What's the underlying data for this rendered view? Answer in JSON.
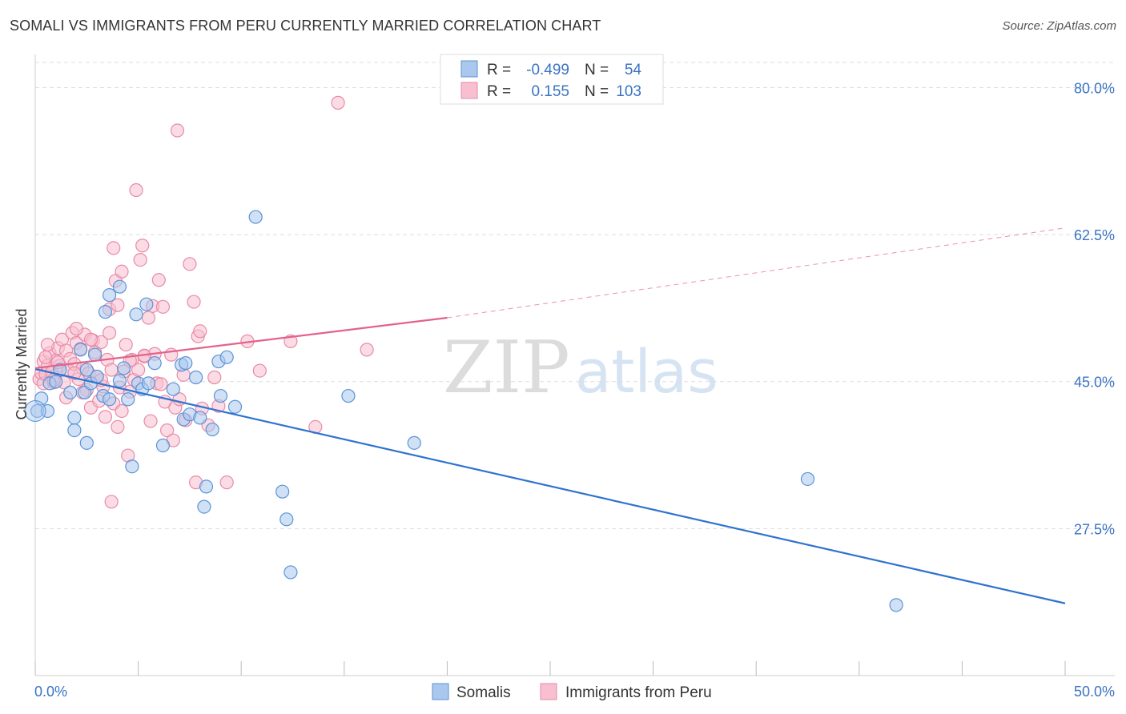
{
  "title": "SOMALI VS IMMIGRANTS FROM PERU CURRENTLY MARRIED CORRELATION CHART",
  "source": "Source: ZipAtlas.com",
  "watermark": {
    "zip": "ZIP",
    "atlas": "atlas"
  },
  "legend": {
    "rows": [
      {
        "r_label": "R =",
        "r_value": "-0.499",
        "n_label": "N =",
        "n_value": "54"
      },
      {
        "r_label": "R =",
        "r_value": "0.155",
        "n_label": "N =",
        "n_value": "103"
      }
    ]
  },
  "bottom_legend": [
    "Somalis",
    "Immigrants from Peru"
  ],
  "colors": {
    "blue_fill": "#aac8ee",
    "blue_stroke": "#5b93d6",
    "blue_line": "#2f73cf",
    "pink_fill": "#f7bfd0",
    "pink_stroke": "#e88aa8",
    "pink_line": "#e2628b",
    "grid": "#dddddd",
    "axis_text": "#3b73c4"
  },
  "chart_data": {
    "type": "scatter",
    "title": "SOMALI VS IMMIGRANTS FROM PERU CURRENTLY MARRIED CORRELATION CHART",
    "xlabel": "",
    "ylabel": "Currently Married",
    "xlim": [
      0,
      50
    ],
    "ylim": [
      10,
      83
    ],
    "x_tick_labels": [
      "0.0%",
      "50.0%"
    ],
    "y_ticks": [
      27.5,
      45.0,
      62.5,
      80.0
    ],
    "y_tick_labels": [
      "27.5%",
      "45.0%",
      "62.5%",
      "80.0%"
    ],
    "series": [
      {
        "name": "Somalis",
        "R": -0.499,
        "N": 54,
        "trend": {
          "x0": 0,
          "y0": 46.5,
          "x1": 50,
          "y1": 18.6
        },
        "points": [
          [
            0.1,
            41.5
          ],
          [
            0.6,
            41.5
          ],
          [
            0.7,
            44.8
          ],
          [
            1.2,
            46.4
          ],
          [
            1.7,
            43.7
          ],
          [
            1.9,
            40.7
          ],
          [
            1.9,
            39.2
          ],
          [
            2.2,
            48.8
          ],
          [
            2.4,
            43.7
          ],
          [
            2.5,
            46.4
          ],
          [
            2.5,
            37.7
          ],
          [
            2.7,
            44.8
          ],
          [
            3.0,
            45.6
          ],
          [
            3.3,
            43.3
          ],
          [
            3.4,
            53.3
          ],
          [
            3.6,
            42.9
          ],
          [
            3.6,
            55.3
          ],
          [
            4.1,
            56.3
          ],
          [
            4.1,
            45.1
          ],
          [
            4.5,
            42.9
          ],
          [
            4.7,
            34.9
          ],
          [
            4.9,
            53.0
          ],
          [
            5.0,
            44.8
          ],
          [
            5.2,
            44.1
          ],
          [
            5.4,
            54.2
          ],
          [
            5.5,
            44.8
          ],
          [
            6.2,
            37.4
          ],
          [
            7.1,
            47.0
          ],
          [
            7.2,
            40.5
          ],
          [
            7.3,
            47.2
          ],
          [
            7.5,
            41.1
          ],
          [
            7.8,
            45.5
          ],
          [
            8.0,
            40.7
          ],
          [
            8.2,
            30.1
          ],
          [
            8.3,
            32.5
          ],
          [
            8.6,
            39.3
          ],
          [
            8.9,
            47.4
          ],
          [
            9.0,
            43.3
          ],
          [
            9.3,
            47.9
          ],
          [
            9.7,
            42.0
          ],
          [
            10.7,
            64.6
          ],
          [
            12.0,
            31.9
          ],
          [
            12.2,
            28.6
          ],
          [
            12.4,
            22.3
          ],
          [
            15.2,
            43.3
          ],
          [
            18.4,
            37.7
          ],
          [
            37.5,
            33.4
          ],
          [
            41.8,
            18.4
          ],
          [
            0.3,
            43.0
          ],
          [
            1.0,
            45.0
          ],
          [
            2.9,
            48.2
          ],
          [
            4.3,
            46.6
          ],
          [
            5.8,
            47.2
          ],
          [
            6.7,
            44.1
          ]
        ]
      },
      {
        "name": "Immigrants from Peru",
        "R": 0.155,
        "N": 103,
        "trend": {
          "x0": 0,
          "y0": 46.6,
          "x1": 20,
          "y1": 52.6,
          "dashed_to_x": 50,
          "dashed_to_y": 63.3
        },
        "points": [
          [
            0.2,
            45.3
          ],
          [
            0.3,
            46.0
          ],
          [
            0.4,
            47.4
          ],
          [
            0.4,
            44.8
          ],
          [
            0.5,
            45.9
          ],
          [
            0.6,
            46.9
          ],
          [
            0.7,
            48.4
          ],
          [
            0.8,
            46.1
          ],
          [
            0.9,
            44.9
          ],
          [
            1.0,
            47.5
          ],
          [
            1.1,
            49.0
          ],
          [
            1.2,
            46.9
          ],
          [
            1.3,
            50.0
          ],
          [
            1.4,
            44.9
          ],
          [
            1.5,
            48.7
          ],
          [
            1.6,
            46.3
          ],
          [
            1.7,
            47.7
          ],
          [
            1.8,
            50.8
          ],
          [
            1.9,
            47.1
          ],
          [
            2.0,
            49.6
          ],
          [
            2.1,
            45.3
          ],
          [
            2.2,
            48.9
          ],
          [
            2.3,
            46.6
          ],
          [
            2.4,
            50.6
          ],
          [
            2.5,
            44.0
          ],
          [
            2.6,
            46.0
          ],
          [
            2.7,
            41.9
          ],
          [
            2.8,
            49.9
          ],
          [
            2.9,
            48.5
          ],
          [
            3.0,
            45.6
          ],
          [
            3.1,
            42.7
          ],
          [
            3.2,
            49.7
          ],
          [
            3.3,
            44.4
          ],
          [
            3.4,
            40.8
          ],
          [
            3.5,
            47.6
          ],
          [
            3.6,
            53.6
          ],
          [
            3.6,
            50.8
          ],
          [
            3.7,
            46.4
          ],
          [
            3.8,
            42.4
          ],
          [
            3.9,
            57.0
          ],
          [
            4.0,
            54.1
          ],
          [
            4.1,
            44.3
          ],
          [
            4.2,
            41.5
          ],
          [
            4.3,
            46.2
          ],
          [
            4.4,
            49.4
          ],
          [
            4.5,
            36.2
          ],
          [
            4.6,
            43.8
          ],
          [
            4.7,
            47.6
          ],
          [
            4.8,
            45.2
          ],
          [
            4.9,
            67.8
          ],
          [
            5.0,
            46.4
          ],
          [
            5.1,
            59.5
          ],
          [
            5.2,
            61.2
          ],
          [
            5.3,
            48.0
          ],
          [
            5.5,
            52.6
          ],
          [
            5.6,
            40.3
          ],
          [
            5.7,
            54.0
          ],
          [
            5.8,
            48.3
          ],
          [
            5.9,
            44.8
          ],
          [
            6.0,
            57.1
          ],
          [
            6.2,
            53.9
          ],
          [
            6.3,
            42.6
          ],
          [
            6.4,
            39.2
          ],
          [
            6.6,
            48.2
          ],
          [
            6.8,
            41.9
          ],
          [
            7.0,
            42.9
          ],
          [
            7.2,
            45.8
          ],
          [
            7.3,
            40.4
          ],
          [
            7.5,
            59.0
          ],
          [
            7.7,
            54.5
          ],
          [
            7.9,
            50.4
          ],
          [
            8.1,
            41.8
          ],
          [
            8.4,
            39.8
          ],
          [
            8.7,
            45.5
          ],
          [
            8.9,
            42.1
          ],
          [
            9.3,
            33.0
          ],
          [
            10.3,
            49.8
          ],
          [
            10.9,
            46.3
          ],
          [
            12.4,
            49.8
          ],
          [
            13.6,
            39.6
          ],
          [
            14.7,
            78.2
          ],
          [
            16.1,
            48.8
          ],
          [
            3.8,
            60.9
          ],
          [
            3.7,
            30.7
          ],
          [
            6.9,
            74.9
          ],
          [
            7.8,
            33.0
          ],
          [
            2.0,
            51.3
          ],
          [
            1.1,
            47.3
          ],
          [
            0.6,
            49.4
          ],
          [
            0.9,
            45.2
          ],
          [
            1.5,
            43.1
          ],
          [
            2.3,
            43.7
          ],
          [
            3.2,
            45.2
          ],
          [
            4.0,
            39.6
          ],
          [
            4.6,
            47.5
          ],
          [
            5.3,
            48.1
          ],
          [
            6.1,
            44.7
          ],
          [
            6.7,
            38.0
          ],
          [
            8.0,
            51.0
          ],
          [
            0.5,
            47.9
          ],
          [
            1.9,
            46.0
          ],
          [
            2.7,
            50.0
          ],
          [
            4.2,
            58.1
          ]
        ]
      }
    ]
  }
}
